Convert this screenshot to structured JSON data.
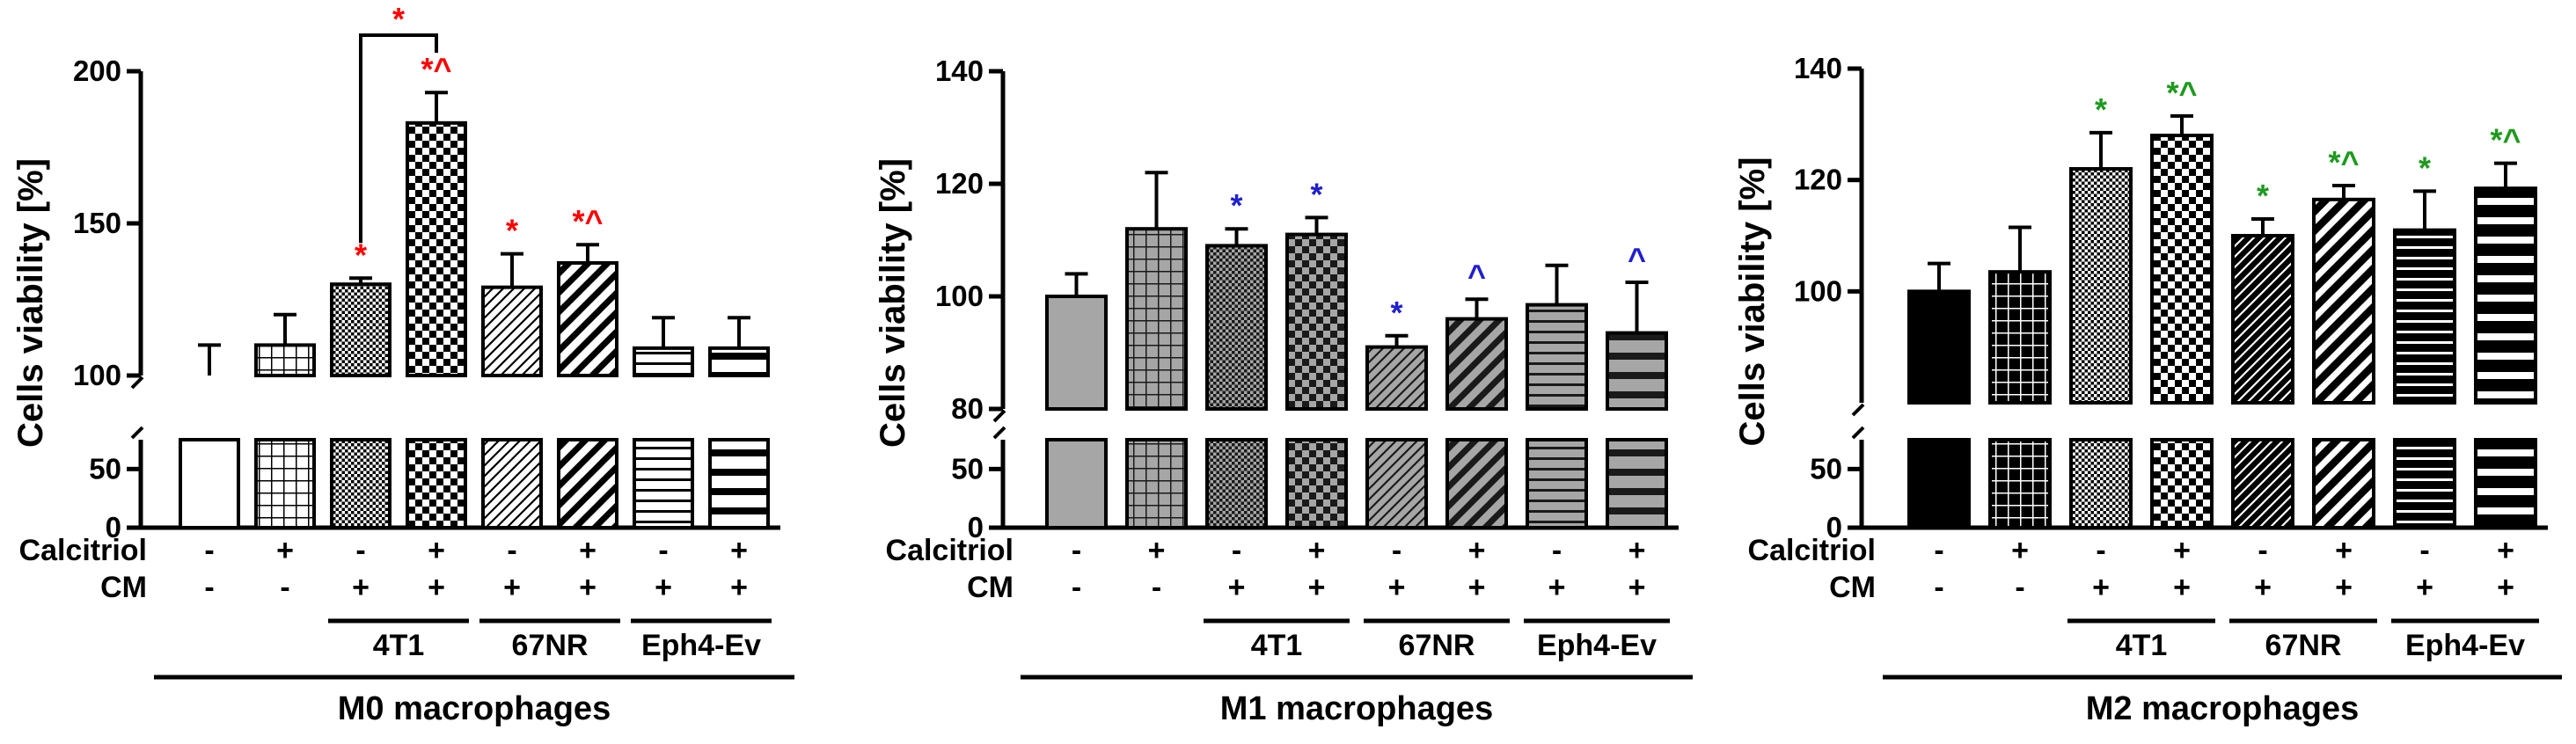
{
  "figure": {
    "condition_labels": [
      "Calcitriol",
      "CM"
    ],
    "groups": [
      "4T1",
      "67NR",
      "Eph4-Ev"
    ]
  },
  "chart_data": [
    {
      "type": "bar",
      "title": "M0 macrophages",
      "ylabel": "Cells viability [%]",
      "y_upper_range": [
        100,
        200
      ],
      "y_upper_ticks": [
        100,
        150,
        200
      ],
      "y_lower_range": [
        0,
        75
      ],
      "y_lower_ticks": [
        0,
        50
      ],
      "calcitriol": [
        "-",
        "+",
        "-",
        "+",
        "-",
        "+",
        "-",
        "+"
      ],
      "cm": [
        "-",
        "-",
        "+",
        "+",
        "+",
        "+",
        "+",
        "+"
      ],
      "groups": [
        {
          "name": "4T1",
          "bars": [
            2,
            3
          ]
        },
        {
          "name": "67NR",
          "bars": [
            4,
            5
          ]
        },
        {
          "name": "Eph4-Ev",
          "bars": [
            6,
            7
          ]
        }
      ],
      "values": [
        100,
        110,
        130,
        183,
        129,
        137,
        109,
        109
      ],
      "errors": [
        10,
        10,
        2,
        10,
        11,
        6,
        10,
        10
      ],
      "fills": [
        "#ffffff",
        "#ffffff",
        "#ffffff",
        "#ffffff",
        "#ffffff",
        "#ffffff",
        "#ffffff",
        "#ffffff"
      ],
      "patterns": [
        "none",
        "grid",
        "dots",
        "checker",
        "diag-thin",
        "diag-thick",
        "horiz-thin",
        "horiz-thick"
      ],
      "annotations": [
        "",
        "",
        "*",
        "*^",
        "*",
        "*^",
        "",
        ""
      ],
      "annotation_color": "#ff0000",
      "bracket": {
        "bars": [
          2,
          3
        ],
        "label": "*"
      }
    },
    {
      "type": "bar",
      "title": "M1 macrophages",
      "ylabel": "Cells viability [%]",
      "y_upper_range": [
        80,
        140
      ],
      "y_upper_ticks": [
        80,
        100,
        120,
        140
      ],
      "y_lower_range": [
        0,
        75
      ],
      "y_lower_ticks": [
        0,
        50
      ],
      "calcitriol": [
        "-",
        "+",
        "-",
        "+",
        "-",
        "+",
        "-",
        "+"
      ],
      "cm": [
        "-",
        "-",
        "+",
        "+",
        "+",
        "+",
        "+",
        "+"
      ],
      "groups": [
        {
          "name": "4T1",
          "bars": [
            2,
            3
          ]
        },
        {
          "name": "67NR",
          "bars": [
            4,
            5
          ]
        },
        {
          "name": "Eph4-Ev",
          "bars": [
            6,
            7
          ]
        }
      ],
      "values": [
        100,
        112,
        109,
        111,
        91,
        96,
        98.5,
        93.5
      ],
      "errors": [
        4,
        10,
        3,
        3,
        2,
        3.5,
        7,
        9
      ],
      "fills": [
        "#a6a6a6",
        "#a6a6a6",
        "#a6a6a6",
        "#a6a6a6",
        "#a6a6a6",
        "#a6a6a6",
        "#a6a6a6",
        "#a6a6a6"
      ],
      "patterns": [
        "none",
        "grid",
        "dots",
        "checker",
        "diag-thin",
        "diag-thick",
        "horiz-thin",
        "horiz-thick"
      ],
      "annotations": [
        "",
        "",
        "*",
        "*",
        "*",
        "^",
        "",
        "^"
      ],
      "annotation_color": "#1f1fcf",
      "bracket": null
    },
    {
      "type": "bar",
      "title": "M2 macrophages",
      "ylabel": "Cells viability [%]",
      "y_upper_range": [
        80,
        140
      ],
      "y_upper_ticks": [
        100,
        120,
        140
      ],
      "y_lower_range": [
        0,
        75
      ],
      "y_lower_ticks": [
        0,
        50
      ],
      "calcitriol": [
        "-",
        "+",
        "-",
        "+",
        "-",
        "+",
        "-",
        "+"
      ],
      "cm": [
        "-",
        "-",
        "+",
        "+",
        "+",
        "+",
        "+",
        "+"
      ],
      "groups": [
        {
          "name": "4T1",
          "bars": [
            2,
            3
          ]
        },
        {
          "name": "67NR",
          "bars": [
            4,
            5
          ]
        },
        {
          "name": "Eph4-Ev",
          "bars": [
            6,
            7
          ]
        }
      ],
      "values": [
        100,
        103.5,
        122,
        128,
        110,
        116.5,
        111,
        118.5
      ],
      "errors": [
        5,
        8,
        6.5,
        3.5,
        3,
        2.5,
        7,
        4.5
      ],
      "fills": [
        "#000000",
        "#000000",
        "#000000",
        "#000000",
        "#000000",
        "#000000",
        "#000000",
        "#000000"
      ],
      "patterns": [
        "none",
        "grid",
        "dots",
        "checker",
        "diag-thin",
        "diag-thick",
        "horiz-thin",
        "horiz-thick"
      ],
      "annotations": [
        "",
        "",
        "*",
        "*^",
        "*",
        "*^",
        "*",
        "*^"
      ],
      "annotation_color": "#1e9a1e",
      "bracket": null
    }
  ]
}
